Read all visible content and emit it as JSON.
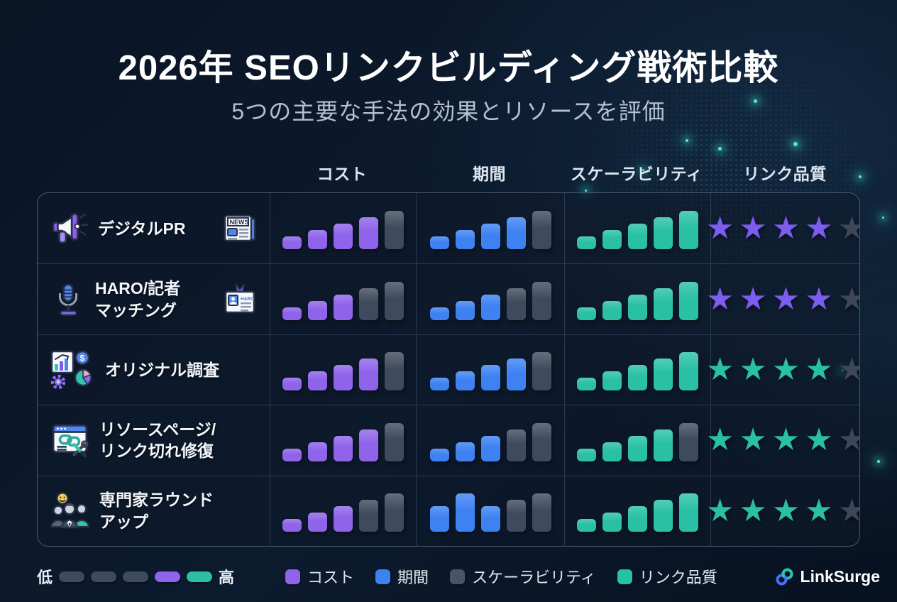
{
  "page": {
    "title": "2026年 SEOリンクビルディング戦術比較",
    "subtitle": "5つの主要な手法の効果とリソースを評価"
  },
  "columns": [
    {
      "key": "tactic",
      "label": ""
    },
    {
      "key": "cost",
      "label": "コスト"
    },
    {
      "key": "duration",
      "label": "期間"
    },
    {
      "key": "scalability",
      "label": "スケーラビリティ"
    },
    {
      "key": "quality",
      "label": "リンク品質"
    }
  ],
  "rows": [
    {
      "label_lines": [
        "デジタルPR"
      ],
      "icon": "megaphone-icon",
      "secondary_icon": "newspaper-icon",
      "cost": {
        "filled": 4,
        "total": 5
      },
      "duration": {
        "filled": 4,
        "total": 5
      },
      "scalability": {
        "filled": 5,
        "total": 5
      },
      "quality": {
        "stars_filled": 4,
        "stars_total": 5,
        "palette": "purple"
      }
    },
    {
      "label_lines": [
        "HARO/記者",
        "マッチング"
      ],
      "icon": "microphone-icon",
      "secondary_icon": "press-badge-icon",
      "cost": {
        "filled": 3,
        "total": 5
      },
      "duration": {
        "filled": 3,
        "total": 5
      },
      "scalability": {
        "filled": 5,
        "total": 5
      },
      "quality": {
        "stars_filled": 4,
        "stars_total": 5,
        "palette": "purple"
      }
    },
    {
      "label_lines": [
        "オリジナル調査"
      ],
      "icon": "research-chart-icon",
      "secondary_icon": null,
      "cost": {
        "filled": 4,
        "total": 5
      },
      "duration": {
        "filled": 4,
        "total": 5
      },
      "scalability": {
        "filled": 5,
        "total": 5
      },
      "quality": {
        "stars_filled": 4,
        "stars_total": 5,
        "palette": "teal"
      }
    },
    {
      "label_lines": [
        "リソースページ/",
        "リンク切れ修復"
      ],
      "icon": "resource-page-icon",
      "secondary_icon": null,
      "cost": {
        "filled": 4,
        "total": 5
      },
      "duration": {
        "filled": 3,
        "total": 5
      },
      "scalability": {
        "filled": 4,
        "total": 5
      },
      "quality": {
        "stars_filled": 4,
        "stars_total": 5,
        "palette": "teal"
      }
    },
    {
      "label_lines": [
        "専門家ラウンド",
        "アップ"
      ],
      "icon": "expert-group-icon",
      "secondary_icon": null,
      "cost": {
        "filled": 3,
        "total": 5
      },
      "duration": {
        "filled": 3,
        "total": 5,
        "levels": [
          3,
          5,
          3,
          4,
          5
        ]
      },
      "scalability": {
        "filled": 5,
        "total": 5
      },
      "quality": {
        "stars_filled": 4,
        "stars_total": 5,
        "palette": "teal"
      }
    }
  ],
  "scale_legend": {
    "low_label": "低",
    "high_label": "高",
    "pills": [
      "#3f4a5e",
      "#3f4a5e",
      "#3f4a5e",
      "#8f63ea",
      "#29c0a6"
    ]
  },
  "series_legend": [
    {
      "label": "コスト",
      "color": "#8f63ea"
    },
    {
      "label": "期間",
      "color": "#3e82f2"
    },
    {
      "label": "スケーラビリティ",
      "color": "#49546a"
    },
    {
      "label": "リンク品質",
      "color": "#29c0a6"
    }
  ],
  "brand": {
    "name": "LinkSurge",
    "icon": "chain-link-icon"
  },
  "colors": {
    "cost": "#8f63ea",
    "duration": "#3e82f2",
    "scalability": "#29c0a6",
    "bar_inactive": "#3e4a5d",
    "star_purple": "#7d5cf0",
    "star_teal": "#29c0a6",
    "star_inactive": "#3d4759"
  },
  "chart_data": {
    "type": "table",
    "title": "2026年 SEOリンクビルディング戦術比較",
    "subtitle": "5つの主要な手法の効果とリソースを評価",
    "categories": [
      "デジタルPR",
      "HARO/記者マッチング",
      "オリジナル調査",
      "リソースページ/リンク切れ修復",
      "専門家ラウンドアップ"
    ],
    "series": [
      {
        "name": "コスト",
        "scale": "1-5 bars",
        "values": [
          4,
          3,
          4,
          4,
          3
        ]
      },
      {
        "name": "期間",
        "scale": "1-5 bars",
        "values": [
          4,
          3,
          4,
          3,
          3
        ]
      },
      {
        "name": "スケーラビリティ",
        "scale": "1-5 bars",
        "values": [
          5,
          5,
          5,
          4,
          5
        ]
      },
      {
        "name": "リンク品質",
        "scale": "1-5 stars",
        "values": [
          4,
          4,
          4,
          4,
          4
        ]
      }
    ],
    "legend_position": "bottom"
  }
}
